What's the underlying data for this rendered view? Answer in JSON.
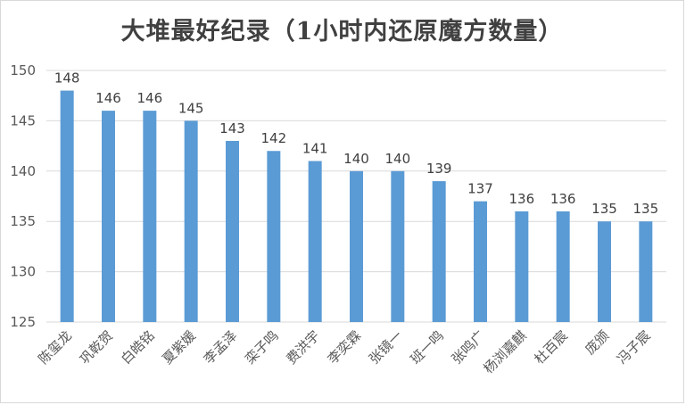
{
  "chart_data": {
    "type": "bar",
    "title": "大堆最好纪录（1小时内还原魔方数量）",
    "xlabel": "",
    "ylabel": "",
    "categories": [
      "陈玺龙",
      "巩乾贺",
      "白皓铭",
      "夏紫媛",
      "李孟泽",
      "栾子鸣",
      "费洪宇",
      "李奕霖",
      "张镜一",
      "班一鸣",
      "张鸣广",
      "杨浏嘉麒",
      "杜百宸",
      "庞颁",
      "冯子宸"
    ],
    "values": [
      148,
      146,
      146,
      145,
      143,
      142,
      141,
      140,
      140,
      139,
      137,
      136,
      136,
      135,
      135
    ],
    "ylim": [
      125,
      150
    ],
    "yticks": [
      125,
      130,
      135,
      140,
      145,
      150
    ],
    "grid": true,
    "legend": "none",
    "data_labels": true,
    "colors": {
      "bar": "#5b9bd5",
      "grid": "#d9d9d9",
      "text": "#595959"
    }
  }
}
